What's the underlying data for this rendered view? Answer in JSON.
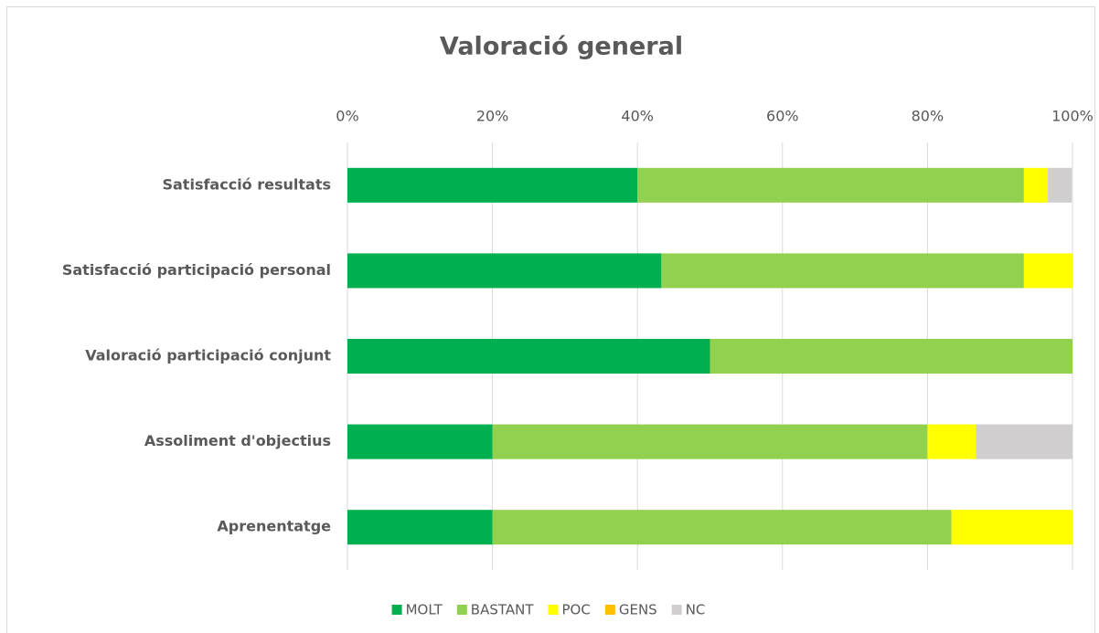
{
  "chart_data": {
    "type": "stacked_barh",
    "title": "Valoració general",
    "categories": [
      "Satisfacció resultats",
      "Satisfacció participació personal",
      "Valoració participació conjunt",
      "Assoliment d'objectius",
      "Aprenentatge"
    ],
    "series": [
      {
        "name": "MOLT",
        "color": "#00b050",
        "values": [
          40,
          43.3,
          50,
          20,
          20
        ]
      },
      {
        "name": "BASTANT",
        "color": "#92d050",
        "values": [
          53.3,
          50,
          50,
          60,
          63.3
        ]
      },
      {
        "name": "POC",
        "color": "#ffff00",
        "values": [
          3.3,
          6.7,
          0,
          6.7,
          16.7
        ]
      },
      {
        "name": "GENS",
        "color": "#ffc000",
        "values": [
          0,
          0,
          0,
          0,
          0
        ]
      },
      {
        "name": "NC",
        "color": "#d0cece",
        "values": [
          3.3,
          0,
          0,
          13.3,
          0
        ]
      }
    ],
    "xlim": [
      0,
      100
    ],
    "xticks": [
      {
        "value": 0,
        "label": "0%"
      },
      {
        "value": 20,
        "label": "20%"
      },
      {
        "value": 40,
        "label": "40%"
      },
      {
        "value": 60,
        "label": "60%"
      },
      {
        "value": 80,
        "label": "80%"
      },
      {
        "value": 100,
        "label": "100%"
      }
    ],
    "grid": true,
    "legend": "bottom"
  }
}
